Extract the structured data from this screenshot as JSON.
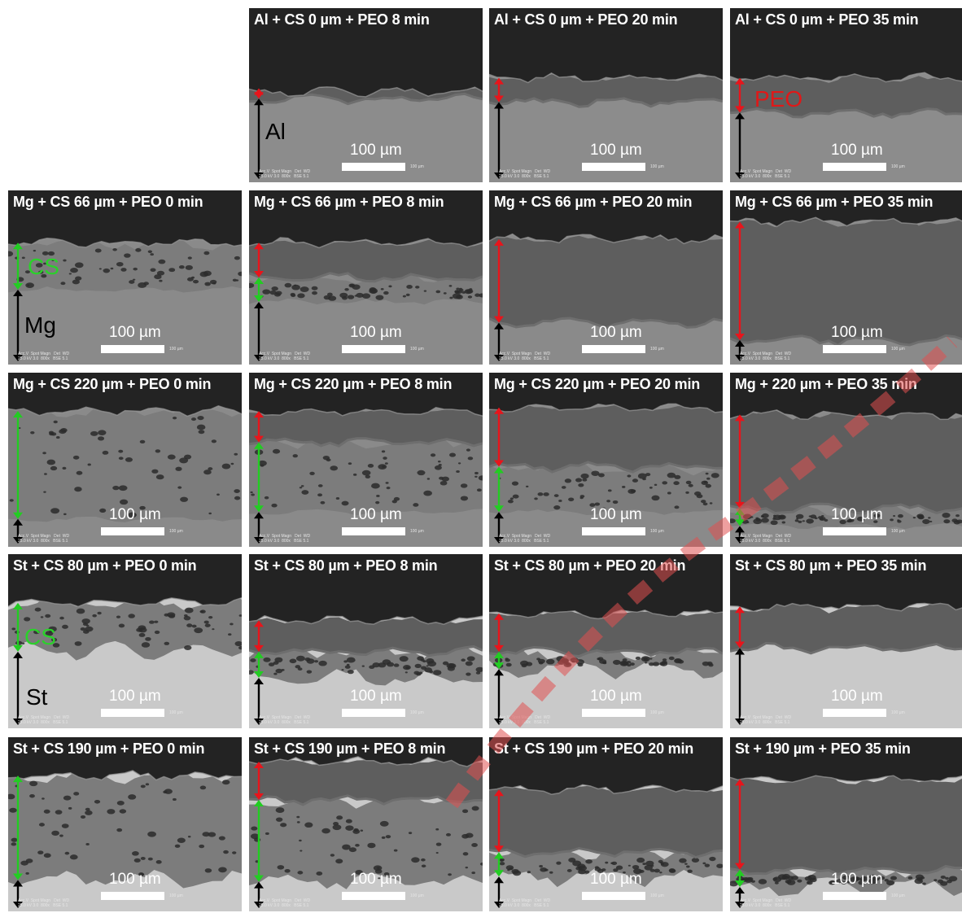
{
  "scale_text": "100 µm",
  "footer_text": "Acc.V  Spot Magn   Det  WD\n25.0 kV 3.0  800x   BSE 5.1",
  "footer_right": "100 µm",
  "colors": {
    "peo": "#e8141b",
    "cs": "#22cc22",
    "sub": "#000000",
    "cs_label": "#2ad12a",
    "peo_label": "#e01818"
  },
  "layer_labels": {
    "al": "Al",
    "peo": "PEO",
    "cs": "CS",
    "mg": "Mg",
    "st": "St"
  },
  "panels": [
    {
      "id": "r0c1",
      "row": 0,
      "col": 1,
      "title": "Al + CS 0 µm + PEO 8 min",
      "sub": "al",
      "surf": 0.48,
      "peo": [
        0.46,
        0.52
      ],
      "cs": null,
      "subst": [
        0.52,
        1.0
      ],
      "label": "al"
    },
    {
      "id": "r0c2",
      "row": 0,
      "col": 2,
      "title": "Al + CS 0 µm + PEO 20 min",
      "sub": "al",
      "surf": 0.4,
      "peo": [
        0.4,
        0.54
      ],
      "cs": null,
      "subst": [
        0.54,
        1.0
      ]
    },
    {
      "id": "r0c3",
      "row": 0,
      "col": 3,
      "title": "Al + CS 0 µm + PEO 35 min",
      "sub": "al",
      "surf": 0.4,
      "peo": [
        0.4,
        0.6
      ],
      "cs": null,
      "subst": [
        0.6,
        1.0
      ],
      "label": "peo"
    },
    {
      "id": "r1c0",
      "row": 1,
      "col": 0,
      "title": "Mg + CS 66 µm + PEO 0 min",
      "sub": "mg",
      "surf": 0.3,
      "peo": null,
      "cs": [
        0.3,
        0.57
      ],
      "subst": [
        0.57,
        1.0
      ],
      "label": "csmg"
    },
    {
      "id": "r1c1",
      "row": 1,
      "col": 1,
      "title": "Mg + CS 66 µm + PEO 8 min",
      "sub": "mg",
      "surf": 0.3,
      "peo": [
        0.3,
        0.5
      ],
      "cs": [
        0.5,
        0.64
      ],
      "subst": [
        0.64,
        1.0
      ]
    },
    {
      "id": "r1c2",
      "row": 1,
      "col": 2,
      "title": "Mg + CS 66 µm + PEO 20 min",
      "sub": "mg",
      "surf": 0.28,
      "peo": [
        0.28,
        0.76
      ],
      "cs": null,
      "subst": [
        0.76,
        1.0
      ]
    },
    {
      "id": "r1c3",
      "row": 1,
      "col": 3,
      "title": "Mg + CS 66 µm + PEO 35 min",
      "sub": "mg",
      "surf": 0.18,
      "peo": [
        0.18,
        0.86
      ],
      "cs": null,
      "subst": [
        0.86,
        1.0
      ]
    },
    {
      "id": "r2c0",
      "row": 2,
      "col": 0,
      "title": "Mg + CS 220 µm + PEO 0 min",
      "sub": "mg",
      "surf": 0.22,
      "peo": null,
      "cs": [
        0.22,
        0.84
      ],
      "subst": [
        0.84,
        1.0
      ]
    },
    {
      "id": "r2c1",
      "row": 2,
      "col": 1,
      "title": "Mg + CS 220 µm + PEO 8 min",
      "sub": "mg",
      "surf": 0.22,
      "peo": [
        0.22,
        0.4
      ],
      "cs": [
        0.4,
        0.8
      ],
      "subst": [
        0.8,
        1.0
      ]
    },
    {
      "id": "r2c2",
      "row": 2,
      "col": 2,
      "title": "Mg +  CS 220 µm + PEO 20 min",
      "sub": "mg",
      "surf": 0.2,
      "peo": [
        0.2,
        0.54
      ],
      "cs": [
        0.54,
        0.8
      ],
      "subst": [
        0.8,
        1.0
      ]
    },
    {
      "id": "r2c3",
      "row": 2,
      "col": 3,
      "title": "Mg +  220 µm + PEO 35 min",
      "sub": "mg",
      "surf": 0.24,
      "peo": [
        0.24,
        0.78
      ],
      "cs": [
        0.78,
        0.88
      ],
      "subst": [
        0.88,
        1.0
      ]
    },
    {
      "id": "r3c0",
      "row": 3,
      "col": 0,
      "title": "St + CS 80 µm + PEO 0 min",
      "sub": "st",
      "surf": 0.28,
      "peo": null,
      "cs": [
        0.28,
        0.56
      ],
      "subst": [
        0.56,
        1.0
      ],
      "label": "csst"
    },
    {
      "id": "r3c1",
      "row": 3,
      "col": 1,
      "title": "St + CS 80 µm + PEO 8 min",
      "sub": "st",
      "surf": 0.38,
      "peo": [
        0.38,
        0.56
      ],
      "cs": [
        0.56,
        0.71
      ],
      "subst": [
        0.71,
        1.0
      ]
    },
    {
      "id": "r3c2",
      "row": 3,
      "col": 2,
      "title": "St + CS 80 µm + PEO 20 min",
      "sub": "st",
      "surf": 0.34,
      "peo": [
        0.34,
        0.56
      ],
      "cs": [
        0.56,
        0.66
      ],
      "subst": [
        0.66,
        1.0
      ]
    },
    {
      "id": "r3c3",
      "row": 3,
      "col": 3,
      "title": "St + CS 80 µm + PEO 35 min",
      "sub": "st",
      "surf": 0.3,
      "peo": [
        0.3,
        0.54
      ],
      "cs": null,
      "subst": [
        0.54,
        1.0
      ]
    },
    {
      "id": "r4c0",
      "row": 4,
      "col": 0,
      "title": "St + CS 190 µm + PEO 0 min",
      "sub": "st",
      "surf": 0.22,
      "peo": null,
      "cs": [
        0.22,
        0.82
      ],
      "subst": [
        0.82,
        1.0
      ]
    },
    {
      "id": "r4c1",
      "row": 4,
      "col": 1,
      "title": "St + CS 190 µm + PEO 8 min",
      "sub": "st",
      "surf": 0.14,
      "peo": [
        0.14,
        0.36
      ],
      "cs": [
        0.36,
        0.83
      ],
      "subst": [
        0.83,
        1.0
      ]
    },
    {
      "id": "r4c2",
      "row": 4,
      "col": 2,
      "title": "St +  CS 190 µm + PEO 20 min",
      "sub": "st",
      "surf": 0.3,
      "peo": [
        0.3,
        0.66
      ],
      "cs": [
        0.66,
        0.8
      ],
      "subst": [
        0.8,
        1.0
      ]
    },
    {
      "id": "r4c3",
      "row": 4,
      "col": 3,
      "title": "St +  190 µm + PEO 35 min",
      "sub": "st",
      "surf": 0.24,
      "peo": [
        0.24,
        0.76
      ],
      "cs": [
        0.76,
        0.86
      ],
      "subst": [
        0.86,
        1.0
      ]
    }
  ]
}
